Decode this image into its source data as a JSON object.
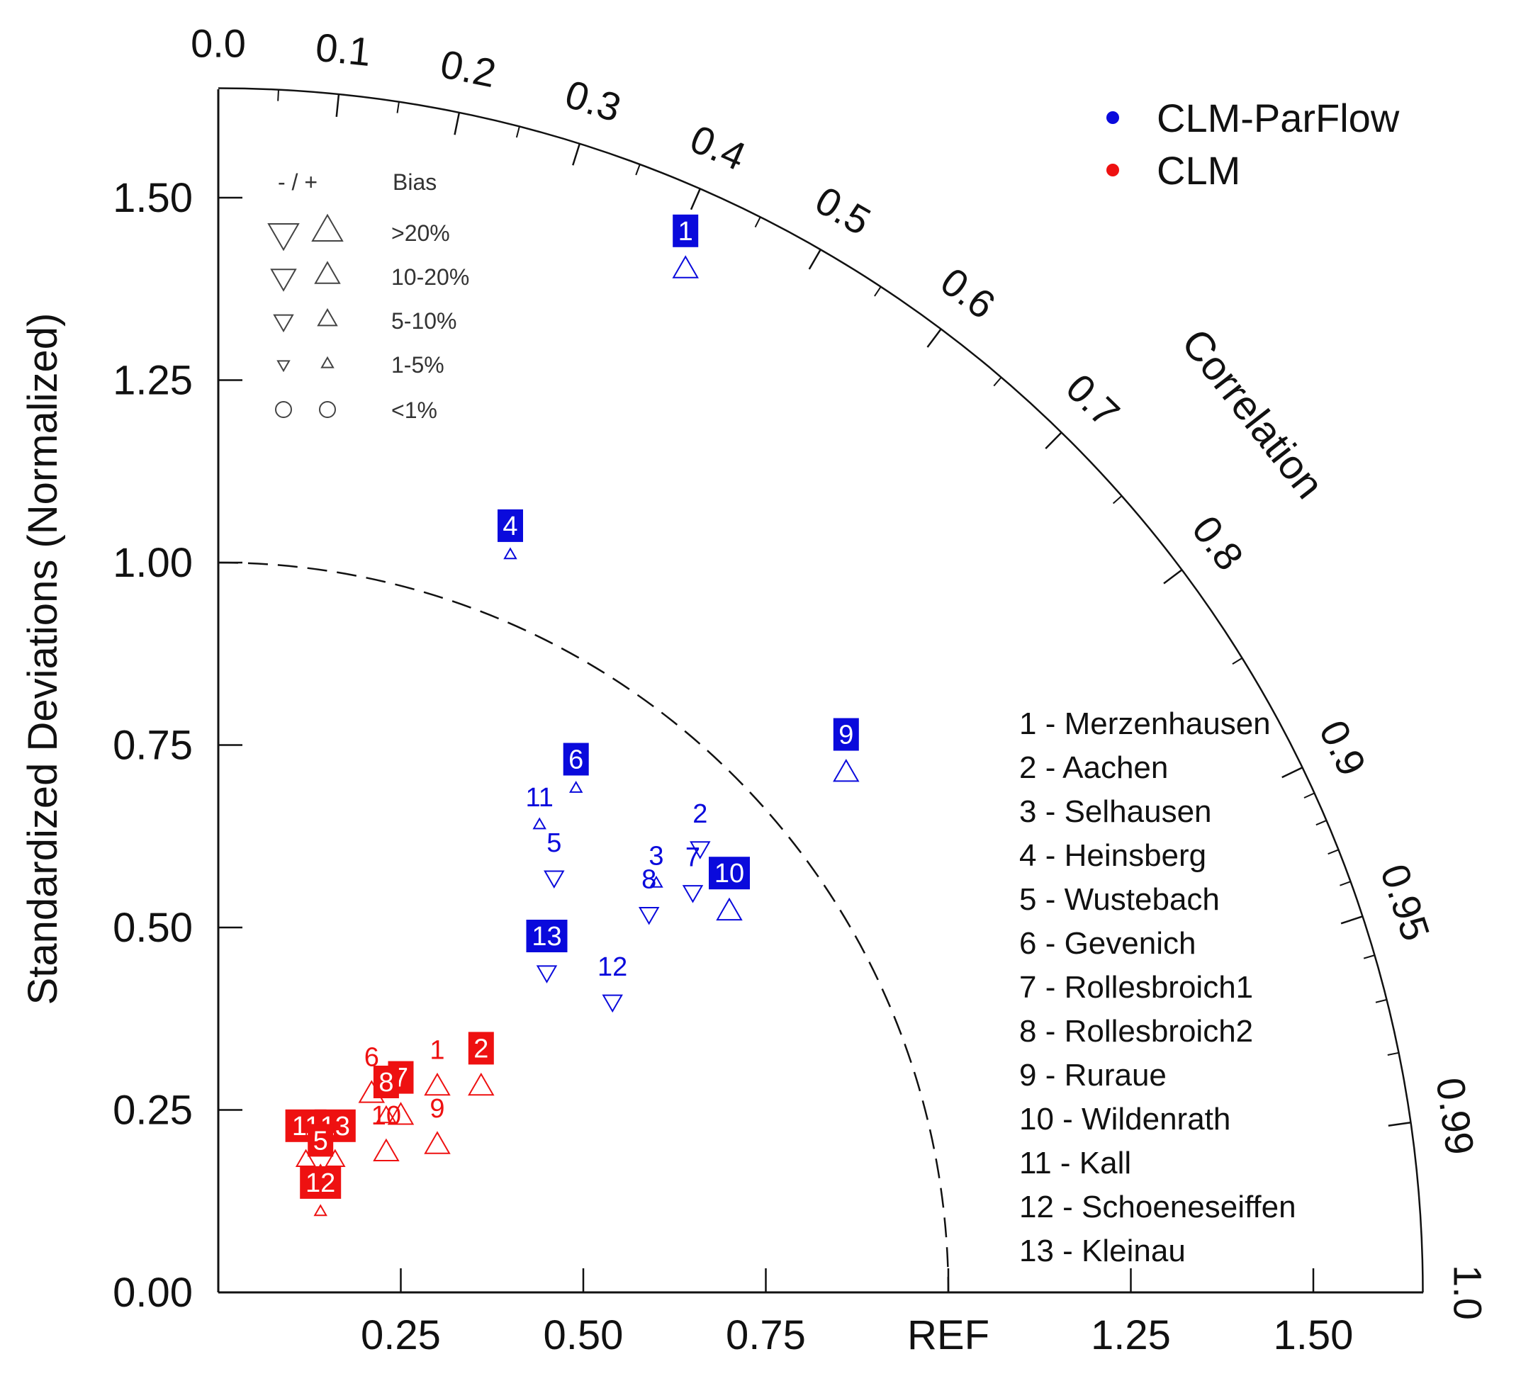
{
  "chart_data": {
    "type": "taylor-diagram",
    "axes": {
      "y_title": "Standardized Deviations (Normalized)",
      "correlation_title": "Correlation",
      "x_ticks": [
        "0.25",
        "0.50",
        "0.75",
        "REF",
        "1.25",
        "1.50"
      ],
      "y_ticks": [
        "0.00",
        "0.25",
        "0.50",
        "0.75",
        "1.00",
        "1.25",
        "1.50"
      ],
      "correlation_ticks": [
        "0.0",
        "0.1",
        "0.2",
        "0.3",
        "0.4",
        "0.5",
        "0.6",
        "0.7",
        "0.8",
        "0.9",
        "0.95",
        "0.99",
        "1.0"
      ],
      "sd_max": 1.65,
      "ref_arc_sd": 1.0
    },
    "series_legend": [
      {
        "name": "CLM-ParFlow",
        "color": "#0a0adc"
      },
      {
        "name": "CLM",
        "color": "#ee1111"
      }
    ],
    "bias_legend": {
      "header_sign": "- / +",
      "header_bias": "Bias",
      "rows": [
        ">20%",
        "10-20%",
        "5-10%",
        "1-5%",
        "<1%"
      ]
    },
    "stations": [
      "1 - Merzenhausen",
      "2 - Aachen",
      "3 - Selhausen",
      "4 - Heinsberg",
      "5 - Wustebach",
      "6 - Gevenich",
      "7 - Rollesbroich1",
      "8 - Rollesbroich2",
      "9 - Ruraue",
      "10 - Wildenrath",
      "11 - Kall",
      "12 - Schoeneseiffen",
      "13 - Kleinau"
    ],
    "points": {
      "CLM-ParFlow": [
        {
          "id": "1",
          "x": 0.64,
          "y": 1.4,
          "bias": "10-20%",
          "sign": "+",
          "boxed": true
        },
        {
          "id": "2",
          "x": 0.66,
          "y": 0.61,
          "bias": "5-10%",
          "sign": "-",
          "boxed": false
        },
        {
          "id": "3",
          "x": 0.6,
          "y": 0.56,
          "bias": "1-5%",
          "sign": "+",
          "boxed": false
        },
        {
          "id": "4",
          "x": 0.4,
          "y": 1.01,
          "bias": "1-5%",
          "sign": "+",
          "boxed": true
        },
        {
          "id": "5",
          "x": 0.46,
          "y": 0.57,
          "bias": "5-10%",
          "sign": "-",
          "boxed": false
        },
        {
          "id": "6",
          "x": 0.49,
          "y": 0.69,
          "bias": "1-5%",
          "sign": "+",
          "boxed": true
        },
        {
          "id": "7",
          "x": 0.65,
          "y": 0.55,
          "bias": "5-10%",
          "sign": "-",
          "boxed": false
        },
        {
          "id": "8",
          "x": 0.59,
          "y": 0.52,
          "bias": "5-10%",
          "sign": "-",
          "boxed": false
        },
        {
          "id": "9",
          "x": 0.86,
          "y": 0.71,
          "bias": "10-20%",
          "sign": "+",
          "boxed": true
        },
        {
          "id": "10",
          "x": 0.7,
          "y": 0.52,
          "bias": "10-20%",
          "sign": "+",
          "boxed": true
        },
        {
          "id": "11",
          "x": 0.44,
          "y": 0.64,
          "bias": "1-5%",
          "sign": "+",
          "boxed": false
        },
        {
          "id": "12",
          "x": 0.54,
          "y": 0.4,
          "bias": "5-10%",
          "sign": "-",
          "boxed": false
        },
        {
          "id": "13",
          "x": 0.45,
          "y": 0.44,
          "bias": "5-10%",
          "sign": "-",
          "boxed": true
        }
      ],
      "CLM": [
        {
          "id": "1",
          "x": 0.3,
          "y": 0.28,
          "bias": "10-20%",
          "sign": "+",
          "boxed": false
        },
        {
          "id": "2",
          "x": 0.36,
          "y": 0.28,
          "bias": "10-20%",
          "sign": "+",
          "boxed": true
        },
        {
          "id": "6",
          "x": 0.21,
          "y": 0.27,
          "bias": "10-20%",
          "sign": "+",
          "boxed": false
        },
        {
          "id": "7",
          "x": 0.25,
          "y": 0.24,
          "bias": "10-20%",
          "sign": "+",
          "boxed": true
        },
        {
          "id": "8",
          "x": 0.23,
          "y": 0.24,
          "bias": "5-10%",
          "sign": "+",
          "boxed": true
        },
        {
          "id": "9",
          "x": 0.3,
          "y": 0.2,
          "bias": "10-20%",
          "sign": "+",
          "boxed": false
        },
        {
          "id": "10",
          "x": 0.23,
          "y": 0.19,
          "bias": "10-20%",
          "sign": "+",
          "boxed": false
        },
        {
          "id": "11",
          "x": 0.12,
          "y": 0.18,
          "bias": "5-10%",
          "sign": "+",
          "boxed": true
        },
        {
          "id": "13",
          "x": 0.16,
          "y": 0.18,
          "bias": "5-10%",
          "sign": "+",
          "boxed": true
        },
        {
          "id": "5",
          "x": 0.14,
          "y": 0.16,
          "bias": "5-10%",
          "sign": "+",
          "boxed": true
        },
        {
          "id": "12",
          "x": 0.14,
          "y": 0.11,
          "bias": "1-5%",
          "sign": "+",
          "boxed": true
        }
      ]
    }
  }
}
